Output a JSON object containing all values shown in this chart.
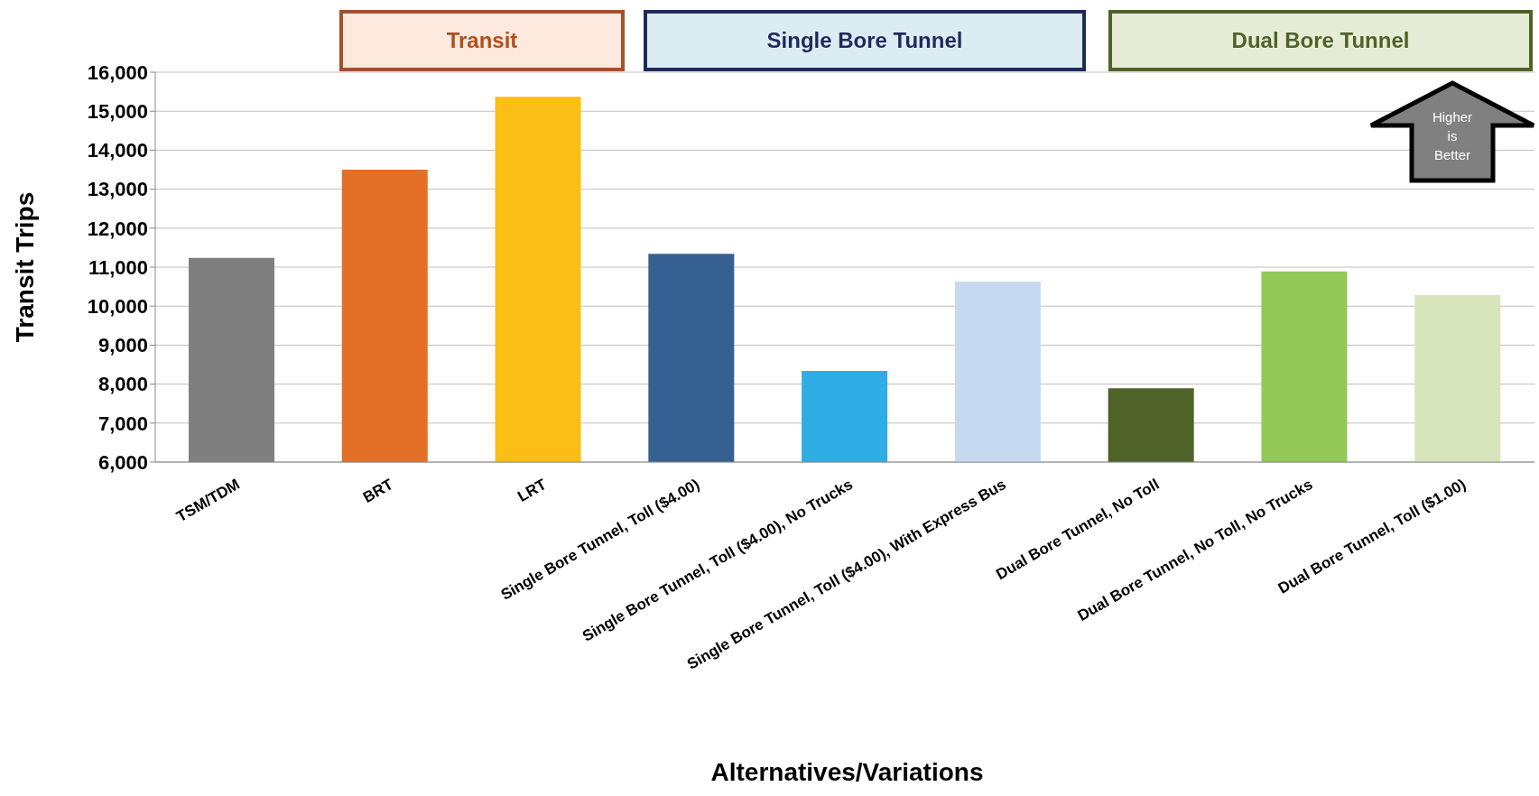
{
  "chart_data": {
    "type": "bar",
    "xlabel": "Alternatives/Variations",
    "ylabel": "Transit Trips",
    "categories": [
      "TSM/TDM",
      "BRT",
      "LRT",
      "Single Bore Tunnel, Toll ($4.00)",
      "Single Bore Tunnel, Toll ($4.00), No Trucks",
      "Single Bore Tunnel, Toll ($4.00), With Express Bus",
      "Dual Bore Tunnel, No Toll",
      "Dual Bore Tunnel, No Toll, No Trucks",
      "Dual Bore Tunnel, Toll ($1.00)"
    ],
    "values": [
      11240,
      13500,
      15370,
      11340,
      8340,
      10630,
      7890,
      10890,
      10280
    ],
    "colors": [
      "#7f7f7f",
      "#e46f26",
      "#fbbe14",
      "#376092",
      "#2dade4",
      "#c6d9f0",
      "#4f6228",
      "#92c957",
      "#d7e4bc"
    ],
    "ylim": [
      6000,
      16000
    ],
    "yticks": [
      {
        "value": 6000,
        "label": "6,000"
      },
      {
        "value": 7000,
        "label": "7,000"
      },
      {
        "value": 8000,
        "label": "8,000"
      },
      {
        "value": 9000,
        "label": "9,000"
      },
      {
        "value": 10000,
        "label": "10,000"
      },
      {
        "value": 11000,
        "label": "11,000"
      },
      {
        "value": 12000,
        "label": "12,000"
      },
      {
        "value": 13000,
        "label": "13,000"
      },
      {
        "value": 14000,
        "label": "14,000"
      },
      {
        "value": 15000,
        "label": "15,000"
      },
      {
        "value": 16000,
        "label": "16,000"
      }
    ],
    "grid": "y",
    "legend": false,
    "annotations": [
      "Transit",
      "Single Bore Tunnel",
      "Dual Bore Tunnel",
      "Higher is Better"
    ]
  }
}
